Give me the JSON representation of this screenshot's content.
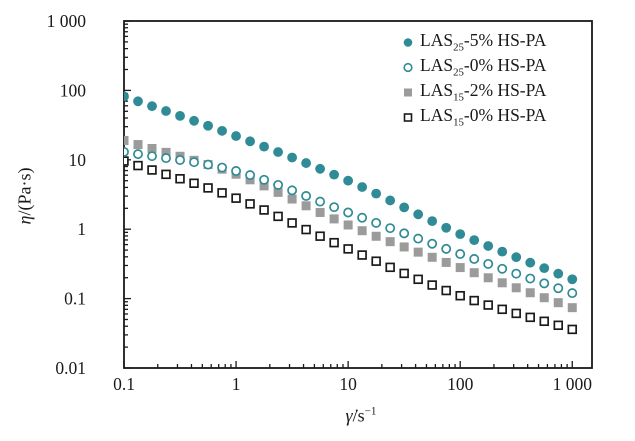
{
  "figure": {
    "background": "#ffffff",
    "text_color": "#1a1a1a",
    "ylabel_symbol": "η",
    "ylabel_rest": "/(Pa·s)",
    "xlabel_symbol": "γ̇",
    "xlabel_rest": "/s",
    "xlabel_exponent": "−1"
  },
  "chart_data": {
    "type": "scatter",
    "x_scale": "log",
    "y_scale": "log",
    "xlabel": "γ̇/s⁻¹",
    "ylabel": "η/(Pa·s)",
    "xlim": [
      0.1,
      1500
    ],
    "ylim": [
      0.01,
      1000
    ],
    "x_tick_values": [
      0.1,
      1,
      10,
      100,
      1000
    ],
    "x_tick_labels": [
      "0.1",
      "1",
      "10",
      "100",
      "1 000"
    ],
    "y_tick_values": [
      1000,
      100,
      10,
      1,
      0.1,
      0.01
    ],
    "y_tick_labels": [
      "1 000",
      "100",
      "10",
      "1",
      "0.1",
      "0.01"
    ],
    "grid": false,
    "legend_position": "top-right-inside",
    "points_per_decade": 8,
    "frame_color": "#1a1a1a",
    "series": [
      {
        "name": "LAS25-5% HS-PA",
        "label_base": "LAS",
        "label_sub": "25",
        "label_rest": "-5% HS-PA",
        "marker": "circle",
        "fill": "filled",
        "color": "#2f8b95",
        "x": [
          0.1,
          1,
          10,
          100,
          1000
        ],
        "values": [
          82,
          22,
          5.0,
          0.85,
          0.19
        ]
      },
      {
        "name": "LAS25-0% HS-PA",
        "label_base": "LAS",
        "label_sub": "25",
        "label_rest": "-0% HS-PA",
        "marker": "circle",
        "fill": "open",
        "color": "#2f8b95",
        "x": [
          0.1,
          1,
          10,
          100,
          1000
        ],
        "values": [
          13,
          6.9,
          1.74,
          0.44,
          0.12
        ]
      },
      {
        "name": "LAS15-2% HS-PA",
        "label_base": "LAS",
        "label_sub": "15",
        "label_rest": "-2% HS-PA",
        "marker": "square",
        "fill": "filled",
        "color": "#9b9b9b",
        "x": [
          0.1,
          1,
          10,
          100,
          1000
        ],
        "values": [
          19,
          6.2,
          1.15,
          0.28,
          0.074
        ]
      },
      {
        "name": "LAS15-0% HS-PA",
        "label_base": "LAS",
        "label_sub": "15",
        "label_rest": "-0% HS-PA",
        "marker": "square",
        "fill": "open",
        "color": "#1a1a1a",
        "x": [
          0.1,
          1,
          10,
          100,
          1000
        ],
        "values": [
          9.6,
          2.8,
          0.52,
          0.11,
          0.036
        ]
      }
    ]
  }
}
